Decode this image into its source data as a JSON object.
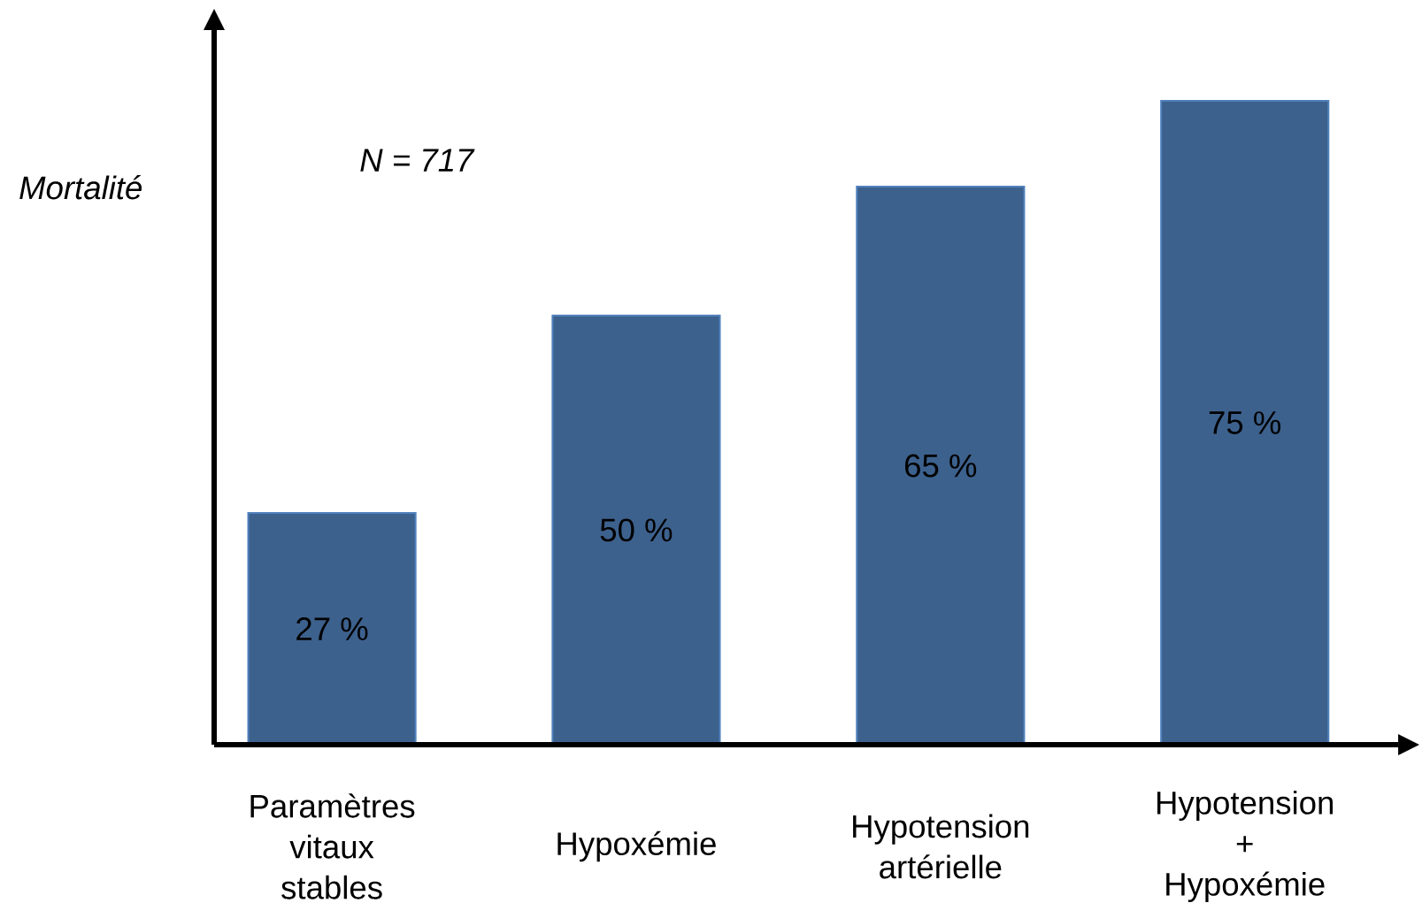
{
  "chart_data": {
    "type": "bar",
    "ylabel": "Mortalité",
    "categories": [
      "Paramètres vitaux stables",
      "Hypoxémie",
      "Hypotension artérielle",
      "Hypotension + Hypoxémie"
    ],
    "values": [
      27,
      50,
      65,
      75
    ],
    "value_labels": [
      "27 %",
      "50 %",
      "65 %",
      "75 %"
    ],
    "color": "#3d618d",
    "tick_labels": "x",
    "annotations": [
      "N = 717"
    ]
  }
}
